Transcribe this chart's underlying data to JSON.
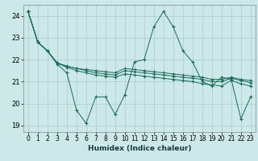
{
  "xlabel": "Humidex (Indice chaleur)",
  "background_color": "#cce8e8",
  "grid_color": "#aacccc",
  "line_color": "#1a6b5a",
  "xlim": [
    -0.5,
    23.5
  ],
  "ylim": [
    18.7,
    24.5
  ],
  "yticks": [
    19,
    20,
    21,
    22,
    23,
    24
  ],
  "xticks": [
    0,
    1,
    2,
    3,
    4,
    5,
    6,
    7,
    8,
    9,
    10,
    11,
    12,
    13,
    14,
    15,
    16,
    17,
    18,
    19,
    20,
    21,
    22,
    23
  ],
  "series": [
    [
      24.2,
      22.8,
      22.4,
      21.8,
      21.4,
      19.7,
      19.1,
      20.3,
      20.3,
      19.5,
      20.4,
      21.9,
      22.0,
      23.5,
      24.2,
      23.5,
      22.4,
      21.9,
      21.0,
      20.8,
      21.2,
      21.1,
      19.3,
      20.3
    ],
    [
      24.2,
      22.8,
      22.4,
      21.85,
      21.7,
      21.6,
      21.55,
      21.5,
      21.45,
      21.4,
      21.6,
      21.55,
      21.5,
      21.45,
      21.4,
      21.35,
      21.3,
      21.25,
      21.2,
      21.1,
      21.1,
      21.2,
      21.1,
      21.05
    ],
    [
      24.2,
      22.8,
      22.4,
      21.85,
      21.7,
      21.6,
      21.5,
      21.4,
      21.35,
      21.3,
      21.5,
      21.45,
      21.4,
      21.35,
      21.3,
      21.25,
      21.2,
      21.15,
      21.1,
      21.0,
      21.0,
      21.15,
      21.05,
      20.95
    ],
    [
      24.2,
      22.8,
      22.4,
      21.85,
      21.65,
      21.5,
      21.4,
      21.3,
      21.25,
      21.2,
      21.35,
      21.3,
      21.25,
      21.2,
      21.15,
      21.1,
      21.05,
      21.0,
      20.9,
      20.85,
      20.8,
      21.05,
      20.9,
      20.8
    ]
  ]
}
